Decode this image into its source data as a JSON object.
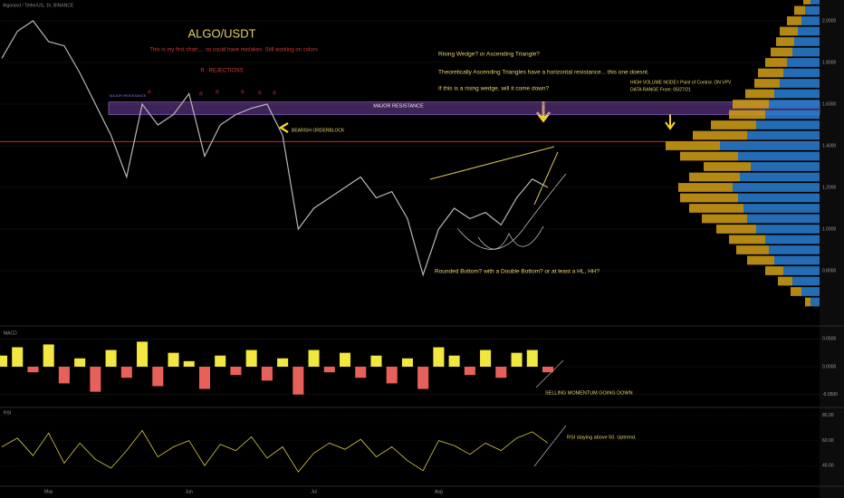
{
  "header": {
    "symbol_line": "Algorand / TetherUS, 1h, BINANCE"
  },
  "chart_data": [
    {
      "type": "line",
      "title": "ALGO/USDT",
      "subtitle": "This is my first chart.... so could have mistakes. Still working on colors",
      "categories": [
        null,
        null,
        null,
        "May",
        null,
        null,
        null,
        null,
        null,
        null,
        null,
        null,
        "Jun",
        null,
        null,
        null,
        null,
        null,
        null,
        null,
        "Jul",
        null,
        null,
        null,
        null,
        null,
        null,
        null,
        "Aug",
        null,
        null,
        null,
        null,
        null,
        null,
        null
      ],
      "values": [
        1.82,
        1.95,
        2.0,
        1.9,
        1.88,
        1.75,
        1.6,
        1.45,
        1.25,
        1.6,
        1.5,
        1.55,
        1.65,
        1.35,
        1.5,
        1.55,
        1.58,
        1.6,
        1.45,
        1.0,
        1.1,
        1.15,
        1.2,
        1.25,
        1.15,
        1.18,
        1.05,
        0.78,
        1.0,
        1.1,
        1.05,
        1.08,
        1.02,
        1.15,
        1.24,
        1.2
      ],
      "color": "#b8b8b8",
      "ylim": [
        0.6,
        2.1
      ],
      "yticks": [
        {
          "value": 0.8,
          "label": "0.8000"
        },
        {
          "value": 1.0,
          "label": "1.0000"
        },
        {
          "value": 1.2,
          "label": "1.2000"
        },
        {
          "value": 1.4,
          "label": "1.4000"
        },
        {
          "value": 1.6,
          "label": "1.6000"
        },
        {
          "value": 1.8,
          "label": "1.8000"
        },
        {
          "value": 2.0,
          "label": "2.0000"
        }
      ],
      "resistance_zone": [
        1.55,
        1.61
      ],
      "resistance_line": 1.42,
      "rejections_label": "R : REJECTIONS",
      "rejection_markers": [
        "R",
        "R",
        "R",
        "R",
        "R",
        "R"
      ],
      "annotations": [
        "MAJOR RESISTANCE",
        "MAJOR RESISTANCE",
        "BEARISH ORDERBLOCK",
        "Rising Wedge? or Ascending Triangle?",
        "Theoretically Ascending Triangles have a horizontal resistance... this one doesnt.",
        "If this is a rising wedge, will it come down?",
        "HIGH VOLUME NODE= Point of Control.  ON VPV",
        "DATA RANGE From: 05/27/21",
        "Rounded Bottom? with a Double Bottom? or at least a HL, HH?"
      ],
      "volume_profile": {
        "levels": [
          0.65,
          0.7,
          0.75,
          0.8,
          0.85,
          0.9,
          0.95,
          1.0,
          1.05,
          1.1,
          1.15,
          1.2,
          1.25,
          1.3,
          1.35,
          1.4,
          1.45,
          1.5,
          1.55,
          1.6,
          1.65,
          1.7,
          1.75,
          1.8,
          1.85,
          1.9,
          1.95,
          2.0,
          2.05,
          2.1
        ],
        "up": [
          5,
          10,
          15,
          20,
          25,
          28,
          30,
          35,
          40,
          42,
          45,
          48,
          44,
          38,
          45,
          55,
          40,
          35,
          30,
          28,
          25,
          22,
          20,
          18,
          15,
          14,
          12,
          10,
          8,
          5
        ],
        "down": [
          3,
          6,
          8,
          10,
          15,
          18,
          20,
          22,
          25,
          30,
          32,
          30,
          28,
          26,
          32,
          30,
          30,
          25,
          20,
          20,
          16,
          14,
          14,
          12,
          12,
          10,
          10,
          8,
          6,
          4
        ],
        "up_color": "#2a7fd4",
        "down_color": "#d4a017",
        "xlim": [
          0,
          100
        ]
      }
    },
    {
      "type": "bar",
      "title": "MACD",
      "values": [
        0.02,
        0.035,
        -0.01,
        0.04,
        -0.03,
        0.015,
        -0.045,
        0.03,
        -0.02,
        0.045,
        -0.035,
        0.025,
        0.01,
        -0.04,
        0.02,
        -0.015,
        0.03,
        -0.025,
        0.015,
        -0.05,
        0.03,
        -0.01,
        0.025,
        -0.02,
        0.02,
        -0.03,
        0.015,
        -0.04,
        0.035,
        0.02,
        -0.015,
        0.03,
        -0.02,
        0.025,
        0.03,
        -0.01
      ],
      "positive_color": "#f2e640",
      "negative_color": "#e8605a",
      "ylim": [
        -0.07,
        0.07
      ],
      "yticks": [
        {
          "value": -0.05,
          "label": "-0.0500"
        },
        {
          "value": 0,
          "label": "0.0000"
        },
        {
          "value": 0.05,
          "label": "0.0500"
        }
      ],
      "annotation": "SELLING MOMENTUM GOING DOWN"
    },
    {
      "type": "line",
      "title": "RSI",
      "values": [
        55,
        62,
        48,
        66,
        42,
        58,
        45,
        38,
        52,
        68,
        47,
        55,
        60,
        40,
        57,
        52,
        63,
        46,
        55,
        35,
        50,
        58,
        53,
        61,
        47,
        55,
        44,
        36,
        60,
        56,
        49,
        58,
        52,
        62,
        67,
        58
      ],
      "color": "#d8c84a",
      "ylim": [
        25,
        85
      ],
      "yticks": [
        {
          "value": 40,
          "label": "40.00"
        },
        {
          "value": 60,
          "label": "60.00"
        },
        {
          "value": 80,
          "label": "80.00"
        }
      ],
      "annotation": "RSI staying above 50.   Uptrend."
    }
  ]
}
